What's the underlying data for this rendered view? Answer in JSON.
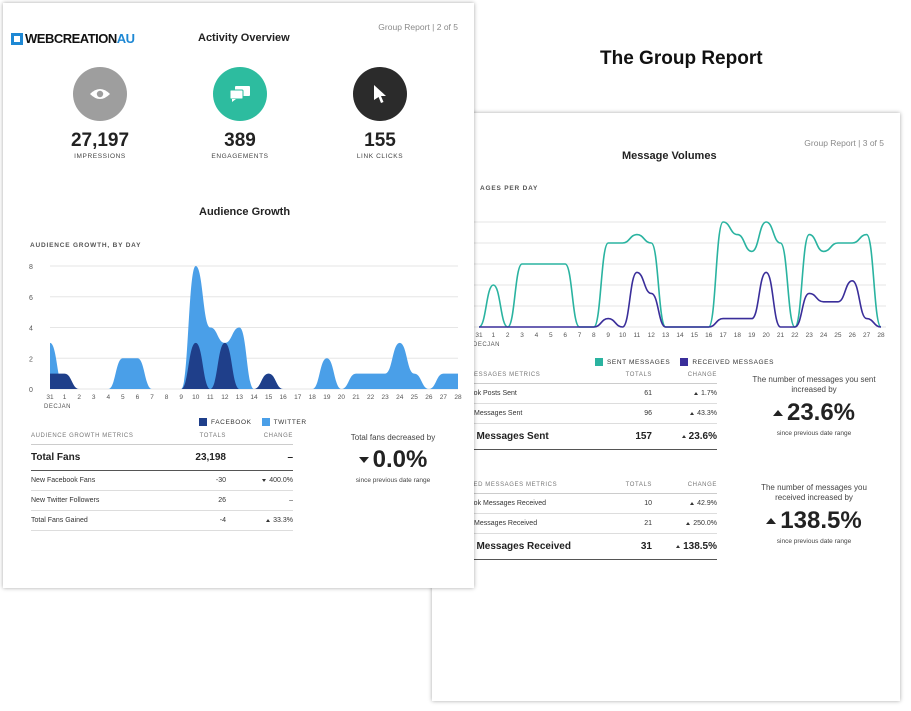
{
  "heading": "The Group Report",
  "page1": {
    "pager": "Group Report | 2 of 5",
    "logo": {
      "main": "WEBCREATION",
      "accent": "AU"
    },
    "title": "Activity Overview",
    "kpis": [
      {
        "value": "27,197",
        "label": "IMPRESSIONS",
        "icon": "eye-icon",
        "color": "#9e9e9e"
      },
      {
        "value": "389",
        "label": "ENGAGEMENTS",
        "icon": "chat-bubbles-icon",
        "color": "#2dbc9f"
      },
      {
        "value": "155",
        "label": "LINK CLICKS",
        "icon": "cursor-arrow-icon",
        "color": "#2b2b2b"
      }
    ],
    "growth_title": "Audience Growth",
    "growth_chart_label": "AUDIENCE GROWTH, BY DAY",
    "legend": [
      {
        "label": "FACEBOOK",
        "color": "#1f3f8a"
      },
      {
        "label": "TWITTER",
        "color": "#4a9fe8"
      }
    ],
    "table": {
      "headers": [
        "AUDIENCE GROWTH METRICS",
        "TOTALS",
        "CHANGE"
      ],
      "rows": [
        {
          "name": "Total Fans",
          "total": "23,198",
          "change": "–",
          "dir": "none",
          "big": true
        },
        {
          "name": "New Facebook Fans",
          "total": "-30",
          "change": "400.0%",
          "dir": "down",
          "big": false
        },
        {
          "name": "New Twitter Followers",
          "total": "26",
          "change": "–",
          "dir": "none",
          "big": false
        },
        {
          "name": "Total Fans Gained",
          "total": "-4",
          "change": "33.3%",
          "dir": "up",
          "big": false
        }
      ]
    },
    "note": {
      "text": "Total fans decreased by",
      "value": "0.0%",
      "sub": "since previous date range",
      "dir": "down"
    }
  },
  "page2": {
    "pager": "Group Report | 3 of 5",
    "title": "Message Volumes",
    "chart_label": "AGES PER DAY",
    "legend": [
      {
        "label": "SENT MESSAGES",
        "color": "#2ab3a0"
      },
      {
        "label": "RECEIVED MESSAGES",
        "color": "#3a2e9a"
      }
    ],
    "sent_table": {
      "headers": [
        "T MESSAGES METRICS",
        "TOTALS",
        "CHANGE"
      ],
      "rows": [
        {
          "name": "ebook Posts Sent",
          "total": "61",
          "change": "1.7%",
          "dir": "up",
          "big": false
        },
        {
          "name": "tter Messages Sent",
          "total": "96",
          "change": "43.3%",
          "dir": "up",
          "big": false
        },
        {
          "name": "tal Messages Sent",
          "total": "157",
          "change": "23.6%",
          "dir": "up",
          "big": true
        }
      ]
    },
    "sent_note": {
      "text": "The number of messages you sent increased by",
      "value": "23.6%",
      "sub": "since previous date range",
      "dir": "up"
    },
    "recv_table": {
      "headers": [
        "EIVED MESSAGES METRICS",
        "TOTALS",
        "CHANGE"
      ],
      "rows": [
        {
          "name": "ebook Messages Received",
          "total": "10",
          "change": "42.9%",
          "dir": "up",
          "big": false
        },
        {
          "name": "tter Messages Received",
          "total": "21",
          "change": "250.0%",
          "dir": "up",
          "big": false
        },
        {
          "name": "tal Messages Received",
          "total": "31",
          "change": "138.5%",
          "dir": "up",
          "big": true
        }
      ]
    },
    "recv_note": {
      "text": "The number of messages you received increased by",
      "value": "138.5%",
      "sub": "since previous date range",
      "dir": "up"
    }
  },
  "chart_data": [
    {
      "type": "area",
      "x": [
        "31",
        "1",
        "2",
        "3",
        "4",
        "5",
        "6",
        "7",
        "8",
        "9",
        "10",
        "11",
        "12",
        "13",
        "14",
        "15",
        "16",
        "17",
        "18",
        "19",
        "20",
        "21",
        "22",
        "23",
        "24",
        "25",
        "26",
        "27",
        "28"
      ],
      "x_sublabels": [
        "DEC",
        "JAN"
      ],
      "ylim": [
        0,
        8
      ],
      "yticks": [
        "0",
        "2",
        "4",
        "6",
        "8"
      ],
      "series": [
        {
          "name": "FACEBOOK",
          "values": [
            1,
            1,
            0,
            0,
            0,
            0,
            0,
            0,
            0,
            0,
            3,
            0,
            3,
            0,
            0,
            1,
            0,
            0,
            0,
            0,
            0,
            0,
            0,
            0,
            0,
            0,
            0,
            0,
            0
          ]
        },
        {
          "name": "TWITTER",
          "values": [
            3,
            0,
            0,
            0,
            0,
            2,
            2,
            0,
            0,
            0,
            8,
            4,
            3,
            4,
            0,
            1,
            0,
            0,
            0,
            2,
            0,
            1,
            1,
            1,
            3,
            1,
            0,
            1,
            1
          ]
        }
      ]
    },
    {
      "type": "line",
      "x": [
        "31",
        "1",
        "2",
        "3",
        "4",
        "5",
        "6",
        "7",
        "8",
        "9",
        "10",
        "11",
        "12",
        "13",
        "14",
        "15",
        "16",
        "17",
        "18",
        "19",
        "20",
        "21",
        "22",
        "23",
        "24",
        "25",
        "26",
        "27",
        "28"
      ],
      "x_sublabels": [
        "DEC",
        "JAN"
      ],
      "series": [
        {
          "name": "SENT MESSAGES",
          "values": [
            0,
            2,
            0,
            3,
            3,
            3,
            3,
            0,
            0,
            4,
            4,
            4.4,
            4,
            0,
            0,
            0,
            0,
            5,
            4.4,
            3.6,
            5,
            4,
            0,
            4.4,
            3.6,
            4,
            4,
            4.4,
            0
          ]
        },
        {
          "name": "RECEIVED MESSAGES",
          "values": [
            0,
            0,
            0,
            0,
            0,
            0,
            0,
            0,
            0,
            0.4,
            0,
            2.6,
            1.6,
            0,
            0,
            0,
            0,
            0.4,
            0.4,
            0.4,
            2.6,
            0,
            0,
            1.6,
            1.2,
            1.2,
            2.2,
            0.4,
            0
          ]
        }
      ]
    }
  ]
}
